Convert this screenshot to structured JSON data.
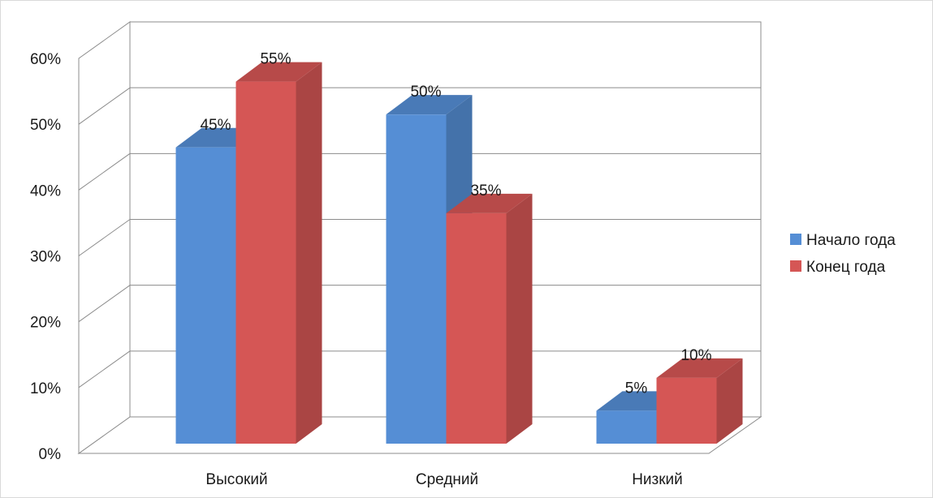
{
  "chart_data": {
    "type": "bar",
    "categories": [
      "Высокий",
      "Средний",
      "Низкий"
    ],
    "series": [
      {
        "name": "Начало года",
        "values": [
          0.45,
          0.5,
          0.05
        ],
        "color": "#558ed5"
      },
      {
        "name": "Конец года",
        "values": [
          0.55,
          0.35,
          0.1
        ],
        "color": "#d55655"
      }
    ],
    "data_labels": [
      [
        "45%",
        "50%",
        "5%"
      ],
      [
        "55%",
        "35%",
        "10%"
      ]
    ],
    "yticks": [
      "0%",
      "10%",
      "20%",
      "30%",
      "40%",
      "50%",
      "60%"
    ],
    "ylim": [
      0,
      0.6
    ],
    "grid": true,
    "legend": "right",
    "style": "3d-clustered-column",
    "title": "",
    "xlabel": "",
    "ylabel": ""
  }
}
